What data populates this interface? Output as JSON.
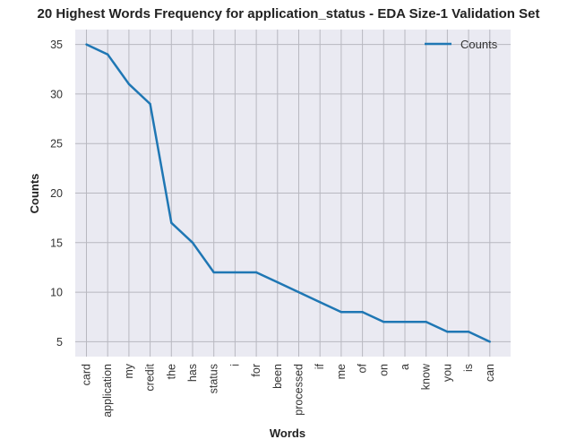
{
  "chart_data": {
    "type": "line",
    "title": "20 Highest Words Frequency for application_status - EDA Size-1 Validation Set",
    "xlabel": "Words",
    "ylabel": "Counts",
    "categories": [
      "card",
      "application",
      "my",
      "credit",
      "the",
      "has",
      "status",
      "i",
      "for",
      "been",
      "processed",
      "if",
      "me",
      "of",
      "on",
      "a",
      "know",
      "you",
      "is",
      "can"
    ],
    "series": [
      {
        "name": "Counts",
        "values": [
          35,
          34,
          31,
          29,
          17,
          15,
          12,
          12,
          12,
          11,
          10,
          9,
          8,
          8,
          7,
          7,
          7,
          6,
          6,
          5
        ],
        "color": "#1f77b4"
      }
    ],
    "ylim": [
      3.5,
      36.5
    ],
    "yticks": [
      5,
      10,
      15,
      20,
      25,
      30,
      35
    ],
    "grid": true,
    "legend_position": "top-right",
    "plot_background": "#eaeaf2",
    "grid_color": "#b8b8c0"
  }
}
